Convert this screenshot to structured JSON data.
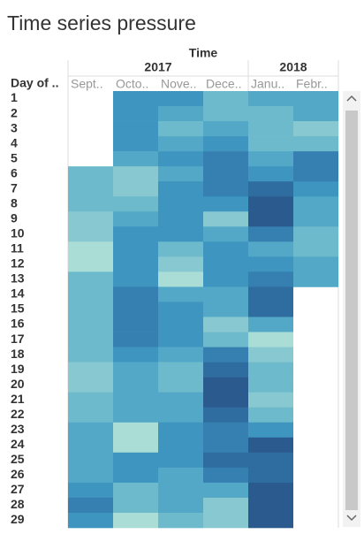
{
  "chart_data": {
    "type": "heatmap",
    "title": "Time series pressure",
    "column_axis_title": "Time",
    "row_header": "Day of ..",
    "years": [
      "2017",
      "2018"
    ],
    "columns": [
      "Sept..",
      "Octo..",
      "Nove..",
      "Dece..",
      "Janu..",
      "Febr.."
    ],
    "rows": [
      "1",
      "2",
      "3",
      "4",
      "5",
      "6",
      "7",
      "8",
      "9",
      "10",
      "11",
      "12",
      "13",
      "14",
      "15",
      "16",
      "17",
      "18",
      "19",
      "20",
      "21",
      "22",
      "23",
      "24",
      "25",
      "26",
      "27",
      "28",
      "29"
    ],
    "cell_colors": [
      [
        null,
        "#3d95c0",
        "#3d95c0",
        "#6cbacb",
        "#52a8c6",
        "#52a8c6"
      ],
      [
        null,
        "#3d95c0",
        "#52a8c6",
        "#6cbacb",
        "#6cbacb",
        "#52a8c6"
      ],
      [
        null,
        "#3d95c0",
        "#6cbacb",
        "#52a8c6",
        "#6cbacb",
        "#88c8d0"
      ],
      [
        null,
        "#3d95c0",
        "#52a8c6",
        "#3d95c0",
        "#6cbacb",
        "#6cbacb"
      ],
      [
        null,
        "#52a8c6",
        "#3d95c0",
        "#3580b0",
        "#52a8c6",
        "#3580b0"
      ],
      [
        "#6cbacb",
        "#88c8d0",
        "#52a8c6",
        "#3580b0",
        "#3d95c0",
        "#3580b0"
      ],
      [
        "#6cbacb",
        "#88c8d0",
        "#3d95c0",
        "#3580b0",
        "#2f6da0",
        "#3d95c0"
      ],
      [
        "#6cbacb",
        "#6cbacb",
        "#3d95c0",
        "#3d95c0",
        "#2b5b8e",
        "#52a8c6"
      ],
      [
        "#88c8d0",
        "#52a8c6",
        "#3d95c0",
        "#88c8d0",
        "#2b5b8e",
        "#52a8c6"
      ],
      [
        "#88c8d0",
        "#3d95c0",
        "#3d95c0",
        "#52a8c6",
        "#3580b0",
        "#6cbacb"
      ],
      [
        "#a9ddd6",
        "#3d95c0",
        "#6cbacb",
        "#3d95c0",
        "#52a8c6",
        "#6cbacb"
      ],
      [
        "#a9ddd6",
        "#3d95c0",
        "#88c8d0",
        "#3d95c0",
        "#3d95c0",
        "#52a8c6"
      ],
      [
        "#6cbacb",
        "#3d95c0",
        "#a9ddd6",
        "#3d95c0",
        "#3580b0",
        "#52a8c6"
      ],
      [
        "#6cbacb",
        "#3580b0",
        "#52a8c6",
        "#52a8c6",
        "#2f6da0",
        null
      ],
      [
        "#6cbacb",
        "#3580b0",
        "#3d95c0",
        "#52a8c6",
        "#2f6da0",
        null
      ],
      [
        "#6cbacb",
        "#3580b0",
        "#3d95c0",
        "#88c8d0",
        "#52a8c6",
        null
      ],
      [
        "#6cbacb",
        "#3580b0",
        "#3d95c0",
        "#6cbacb",
        "#a9ddd6",
        null
      ],
      [
        "#6cbacb",
        "#3d95c0",
        "#52a8c6",
        "#3580b0",
        "#88c8d0",
        null
      ],
      [
        "#88c8d0",
        "#52a8c6",
        "#6cbacb",
        "#2f6da0",
        "#6cbacb",
        null
      ],
      [
        "#88c8d0",
        "#52a8c6",
        "#6cbacb",
        "#2b5b8e",
        "#6cbacb",
        null
      ],
      [
        "#6cbacb",
        "#52a8c6",
        "#52a8c6",
        "#2b5b8e",
        "#88c8d0",
        null
      ],
      [
        "#6cbacb",
        "#52a8c6",
        "#52a8c6",
        "#2f6da0",
        "#6cbacb",
        null
      ],
      [
        "#52a8c6",
        "#a9ddd6",
        "#3d95c0",
        "#3580b0",
        "#3d95c0",
        null
      ],
      [
        "#52a8c6",
        "#a9ddd6",
        "#3d95c0",
        "#3580b0",
        "#2b5b8e",
        null
      ],
      [
        "#52a8c6",
        "#3d95c0",
        "#3d95c0",
        "#2f6da0",
        "#2f6da0",
        null
      ],
      [
        "#52a8c6",
        "#3d95c0",
        "#52a8c6",
        "#3580b0",
        "#2f6da0",
        null
      ],
      [
        "#3d95c0",
        "#6cbacb",
        "#52a8c6",
        "#52a8c6",
        "#2b5b8e",
        null
      ],
      [
        "#3580b0",
        "#6cbacb",
        "#52a8c6",
        "#88c8d0",
        "#2b5b8e",
        null
      ],
      [
        "#3d95c0",
        "#a9ddd6",
        "#6cbacb",
        "#88c8d0",
        "#2b5b8e",
        null
      ]
    ]
  }
}
